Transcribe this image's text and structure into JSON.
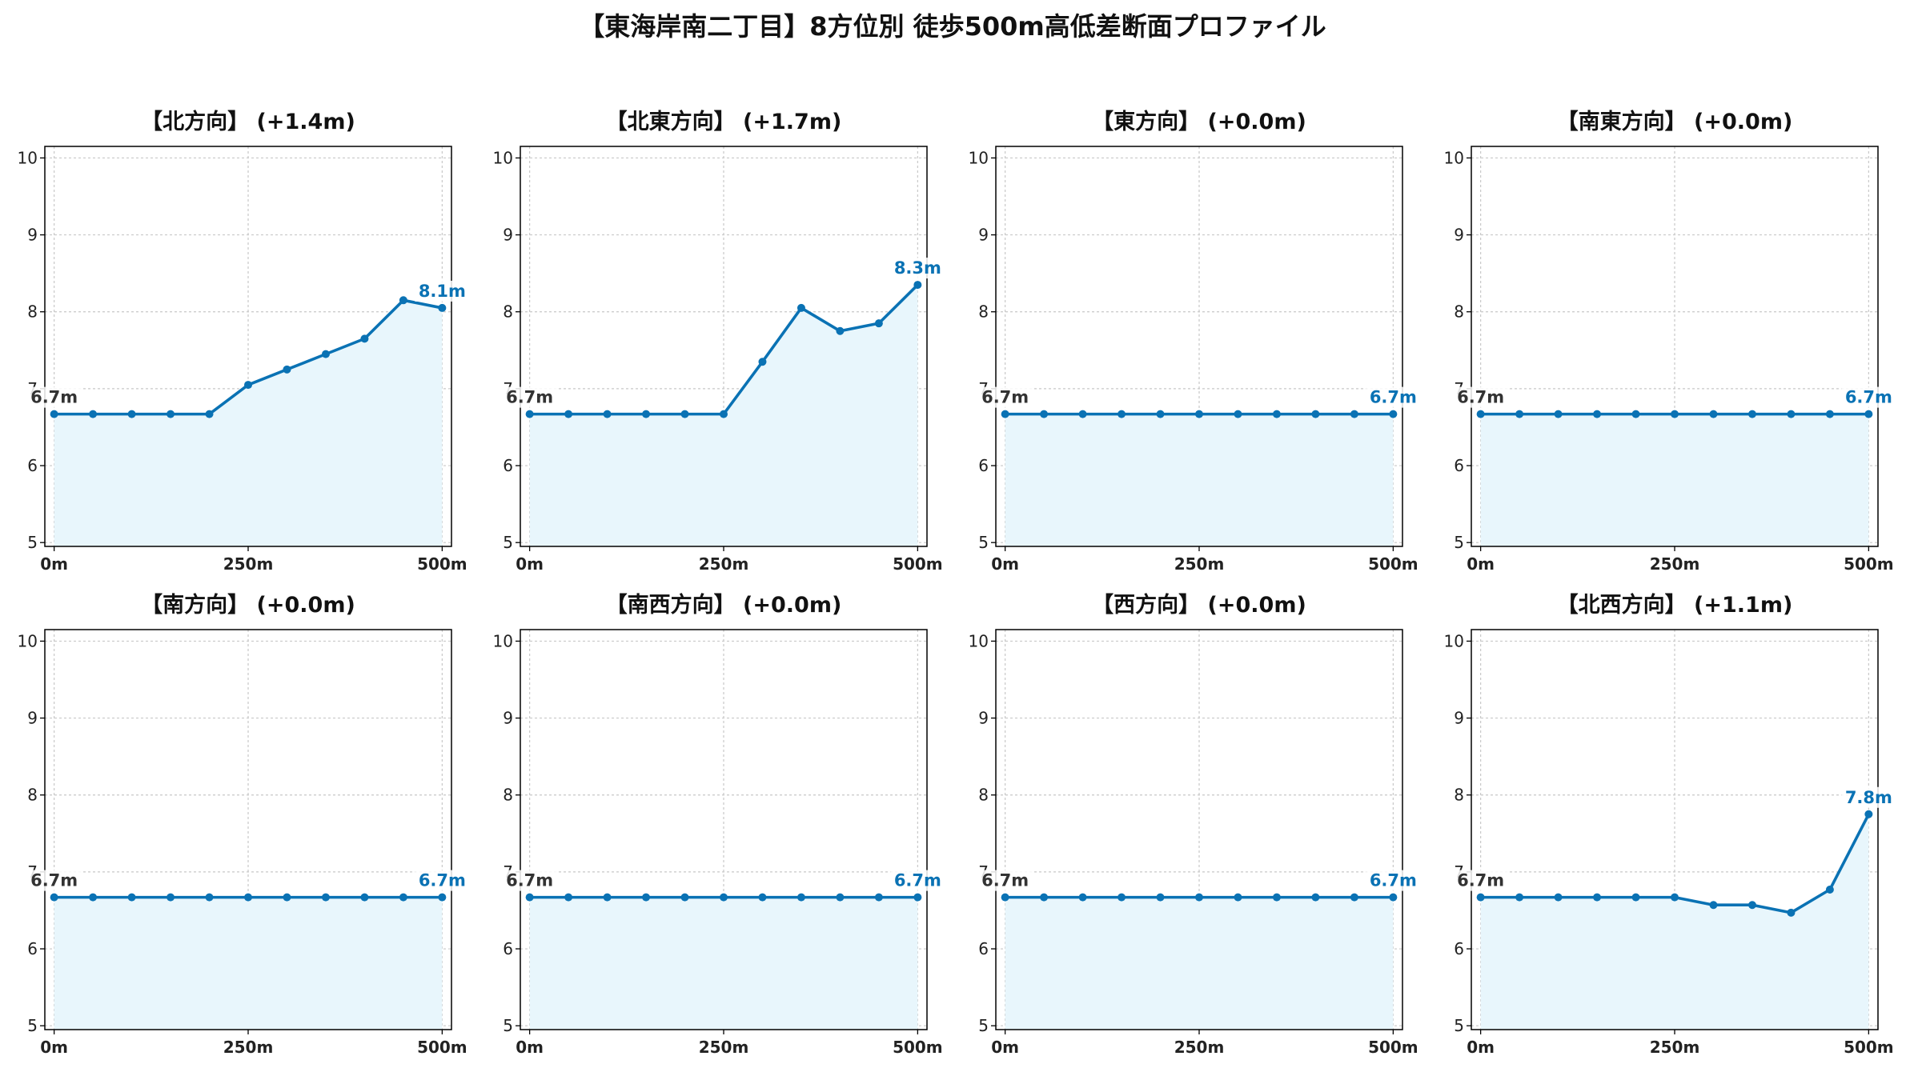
{
  "title": "【東海岸南二丁目】8方位別 徒歩500m高低差断面プロファイル",
  "colors": {
    "line": "#0a72b4",
    "fill": "#e8f6fc",
    "start_label": "#333333",
    "end_label": "#0a72b4",
    "grid": "#c8c8c8"
  },
  "chart_data": [
    {
      "type": "area",
      "title": "【北方向】 (+1.4m)",
      "x": [
        0,
        50,
        100,
        150,
        200,
        250,
        300,
        350,
        400,
        450,
        500
      ],
      "values": [
        6.67,
        6.67,
        6.67,
        6.67,
        6.67,
        7.05,
        7.25,
        7.45,
        7.65,
        8.15,
        8.05
      ],
      "start_label": "6.7m",
      "end_label": "8.1m",
      "xticks": [
        "0m",
        "250m",
        "500m"
      ],
      "yticks": [
        "5",
        "6",
        "7",
        "8",
        "9",
        "10"
      ],
      "ylim": [
        4.95,
        10.15
      ],
      "xlim": [
        -12,
        512
      ],
      "grid": true
    },
    {
      "type": "area",
      "title": "【北東方向】 (+1.7m)",
      "x": [
        0,
        50,
        100,
        150,
        200,
        250,
        300,
        350,
        400,
        450,
        500
      ],
      "values": [
        6.67,
        6.67,
        6.67,
        6.67,
        6.67,
        6.67,
        7.35,
        8.05,
        7.75,
        7.85,
        8.35
      ],
      "start_label": "6.7m",
      "end_label": "8.3m",
      "xticks": [
        "0m",
        "250m",
        "500m"
      ],
      "yticks": [
        "5",
        "6",
        "7",
        "8",
        "9",
        "10"
      ],
      "ylim": [
        4.95,
        10.15
      ],
      "xlim": [
        -12,
        512
      ],
      "grid": true
    },
    {
      "type": "area",
      "title": "【東方向】 (+0.0m)",
      "x": [
        0,
        50,
        100,
        150,
        200,
        250,
        300,
        350,
        400,
        450,
        500
      ],
      "values": [
        6.67,
        6.67,
        6.67,
        6.67,
        6.67,
        6.67,
        6.67,
        6.67,
        6.67,
        6.67,
        6.67
      ],
      "start_label": "6.7m",
      "end_label": "6.7m",
      "xticks": [
        "0m",
        "250m",
        "500m"
      ],
      "yticks": [
        "5",
        "6",
        "7",
        "8",
        "9",
        "10"
      ],
      "ylim": [
        4.95,
        10.15
      ],
      "xlim": [
        -12,
        512
      ],
      "grid": true
    },
    {
      "type": "area",
      "title": "【南東方向】 (+0.0m)",
      "x": [
        0,
        50,
        100,
        150,
        200,
        250,
        300,
        350,
        400,
        450,
        500
      ],
      "values": [
        6.67,
        6.67,
        6.67,
        6.67,
        6.67,
        6.67,
        6.67,
        6.67,
        6.67,
        6.67,
        6.67
      ],
      "start_label": "6.7m",
      "end_label": "6.7m",
      "xticks": [
        "0m",
        "250m",
        "500m"
      ],
      "yticks": [
        "5",
        "6",
        "7",
        "8",
        "9",
        "10"
      ],
      "ylim": [
        4.95,
        10.15
      ],
      "xlim": [
        -12,
        512
      ],
      "grid": true
    },
    {
      "type": "area",
      "title": "【南方向】 (+0.0m)",
      "x": [
        0,
        50,
        100,
        150,
        200,
        250,
        300,
        350,
        400,
        450,
        500
      ],
      "values": [
        6.67,
        6.67,
        6.67,
        6.67,
        6.67,
        6.67,
        6.67,
        6.67,
        6.67,
        6.67,
        6.67
      ],
      "start_label": "6.7m",
      "end_label": "6.7m",
      "xticks": [
        "0m",
        "250m",
        "500m"
      ],
      "yticks": [
        "5",
        "6",
        "7",
        "8",
        "9",
        "10"
      ],
      "ylim": [
        4.95,
        10.15
      ],
      "xlim": [
        -12,
        512
      ],
      "grid": true
    },
    {
      "type": "area",
      "title": "【南西方向】 (+0.0m)",
      "x": [
        0,
        50,
        100,
        150,
        200,
        250,
        300,
        350,
        400,
        450,
        500
      ],
      "values": [
        6.67,
        6.67,
        6.67,
        6.67,
        6.67,
        6.67,
        6.67,
        6.67,
        6.67,
        6.67,
        6.67
      ],
      "start_label": "6.7m",
      "end_label": "6.7m",
      "xticks": [
        "0m",
        "250m",
        "500m"
      ],
      "yticks": [
        "5",
        "6",
        "7",
        "8",
        "9",
        "10"
      ],
      "ylim": [
        4.95,
        10.15
      ],
      "xlim": [
        -12,
        512
      ],
      "grid": true
    },
    {
      "type": "area",
      "title": "【西方向】 (+0.0m)",
      "x": [
        0,
        50,
        100,
        150,
        200,
        250,
        300,
        350,
        400,
        450,
        500
      ],
      "values": [
        6.67,
        6.67,
        6.67,
        6.67,
        6.67,
        6.67,
        6.67,
        6.67,
        6.67,
        6.67,
        6.67
      ],
      "start_label": "6.7m",
      "end_label": "6.7m",
      "xticks": [
        "0m",
        "250m",
        "500m"
      ],
      "yticks": [
        "5",
        "6",
        "7",
        "8",
        "9",
        "10"
      ],
      "ylim": [
        4.95,
        10.15
      ],
      "xlim": [
        -12,
        512
      ],
      "grid": true
    },
    {
      "type": "area",
      "title": "【北西方向】 (+1.1m)",
      "x": [
        0,
        50,
        100,
        150,
        200,
        250,
        300,
        350,
        400,
        450,
        500
      ],
      "values": [
        6.67,
        6.67,
        6.67,
        6.67,
        6.67,
        6.67,
        6.57,
        6.57,
        6.47,
        6.77,
        7.75
      ],
      "start_label": "6.7m",
      "end_label": "7.8m",
      "xticks": [
        "0m",
        "250m",
        "500m"
      ],
      "yticks": [
        "5",
        "6",
        "7",
        "8",
        "9",
        "10"
      ],
      "ylim": [
        4.95,
        10.15
      ],
      "xlim": [
        -12,
        512
      ],
      "grid": true
    }
  ]
}
